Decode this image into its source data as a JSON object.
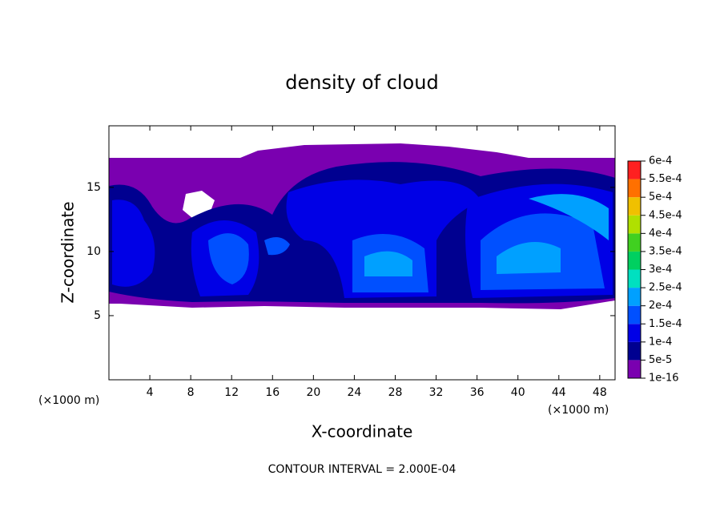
{
  "chart_data": {
    "type": "contour",
    "title": "density of cloud",
    "xlabel": "X-coordinate",
    "ylabel": "Z-coordinate",
    "x_unit": "(×1000 m)",
    "y_unit": "(×1000 m)",
    "note": "CONTOUR INTERVAL = 2.000E-04",
    "xlim": [
      0,
      49.5
    ],
    "ylim": [
      0,
      19.8
    ],
    "xticks": [
      4,
      8,
      12,
      16,
      20,
      24,
      28,
      32,
      36,
      40,
      44,
      48
    ],
    "yticks": [
      5,
      10,
      15
    ],
    "levels": [
      {
        "value": 1e-16,
        "label": "1e-16"
      },
      {
        "value": 5e-05,
        "label": "5e-5"
      },
      {
        "value": 0.0001,
        "label": "1e-4"
      },
      {
        "value": 0.00015,
        "label": "1.5e-4"
      },
      {
        "value": 0.0002,
        "label": "2e-4"
      },
      {
        "value": 0.00025,
        "label": "2.5e-4"
      },
      {
        "value": 0.0003,
        "label": "3e-4"
      },
      {
        "value": 0.00035,
        "label": "3.5e-4"
      },
      {
        "value": 0.0004,
        "label": "4e-4"
      },
      {
        "value": 0.00045,
        "label": "4.5e-4"
      },
      {
        "value": 0.0005,
        "label": "5e-4"
      },
      {
        "value": 0.00055,
        "label": "5.5e-4"
      },
      {
        "value": 0.0006,
        "label": "6e-4"
      }
    ],
    "colors": [
      "#7a00b0",
      "#000090",
      "#0000e6",
      "#0050ff",
      "#00a0ff",
      "#00e0c0",
      "#00d060",
      "#40d020",
      "#b0e000",
      "#f0c000",
      "#ff7000",
      "#ff2020",
      "#ff8080"
    ]
  }
}
